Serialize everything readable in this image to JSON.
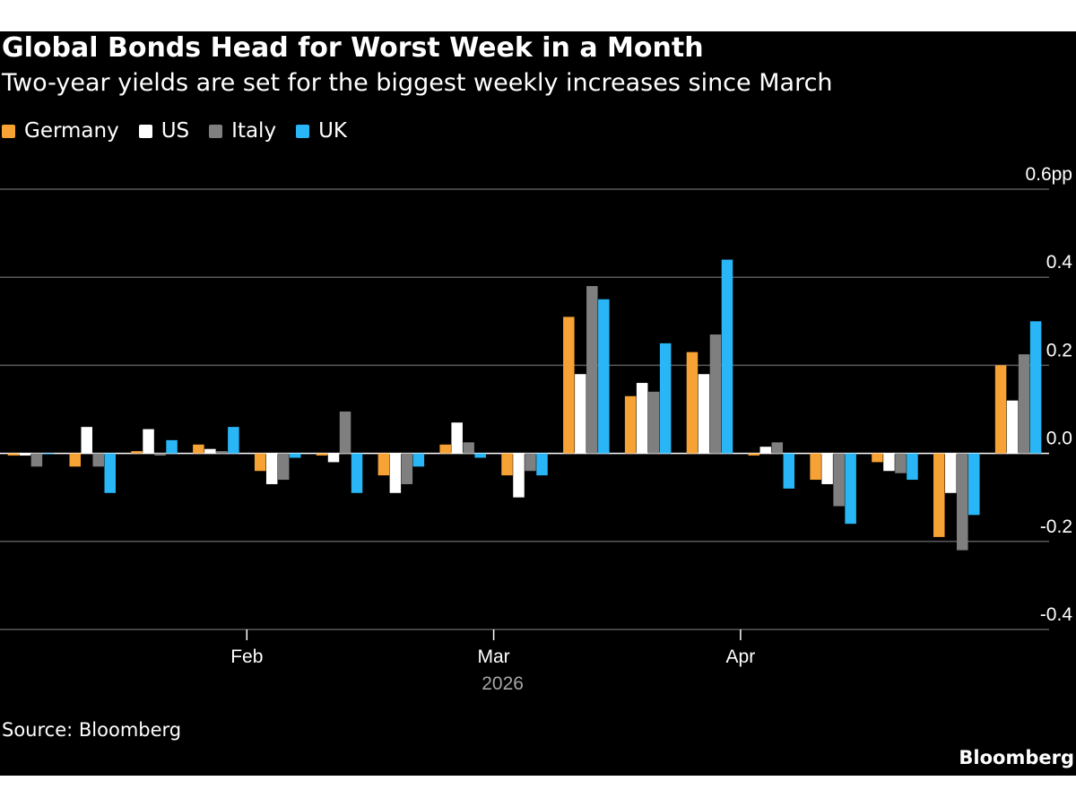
{
  "title": "Global Bonds Head for Worst Week in a Month",
  "subtitle": "Two-year yields are set for the biggest weekly increases since March",
  "source": "Source: Bloomberg",
  "brand": "Bloomberg",
  "colors": {
    "background": "#000000",
    "text": "#ffffff",
    "grid": "#5a5a5a"
  },
  "chart_data": {
    "type": "bar",
    "title": "",
    "xlabel": "2026",
    "ylabel": "",
    "ylim": [
      -0.4,
      0.6
    ],
    "y_ticks": [
      {
        "value": 0.6,
        "label": "0.6pp"
      },
      {
        "value": 0.4,
        "label": "0.4"
      },
      {
        "value": 0.2,
        "label": "0.2"
      },
      {
        "value": 0.0,
        "label": "0.0"
      },
      {
        "value": -0.2,
        "label": "-0.2"
      },
      {
        "value": -0.4,
        "label": "-0.4"
      }
    ],
    "x_ticks": [
      {
        "label": "Feb",
        "after_week": 3.5
      },
      {
        "label": "Mar",
        "after_week": 7.5
      },
      {
        "label": "Apr",
        "after_week": 11.5
      }
    ],
    "year_label": "2026",
    "grid": true,
    "legend_position": "top-left",
    "categories": [
      "Week 1",
      "Week 2",
      "Week 3",
      "Week 4",
      "Week 5",
      "Week 6",
      "Week 7",
      "Week 8",
      "Week 9",
      "Week 10",
      "Week 11",
      "Week 12",
      "Week 13",
      "Week 14",
      "Week 15",
      "Week 16",
      "Week 17"
    ],
    "series": [
      {
        "name": "Germany",
        "color": "#f7a235",
        "values": [
          -0.005,
          -0.03,
          0.005,
          0.02,
          -0.04,
          -0.005,
          -0.05,
          0.02,
          -0.05,
          0.31,
          0.13,
          0.23,
          -0.005,
          -0.06,
          -0.02,
          -0.19,
          0.2
        ]
      },
      {
        "name": "US",
        "color": "#ffffff",
        "values": [
          -0.005,
          0.06,
          0.055,
          0.01,
          -0.07,
          -0.02,
          -0.09,
          0.07,
          -0.1,
          0.18,
          0.16,
          0.18,
          0.015,
          -0.07,
          -0.04,
          -0.09,
          0.12
        ]
      },
      {
        "name": "Italy",
        "color": "#7f7f7f",
        "values": [
          -0.03,
          -0.03,
          -0.005,
          0.005,
          -0.06,
          0.095,
          -0.07,
          0.025,
          -0.04,
          0.38,
          0.14,
          0.27,
          0.025,
          -0.12,
          -0.045,
          -0.22,
          0.225
        ]
      },
      {
        "name": "UK",
        "color": "#29b6f6",
        "values": [
          0.0,
          -0.09,
          0.03,
          0.06,
          -0.01,
          -0.09,
          -0.03,
          -0.01,
          -0.05,
          0.35,
          0.25,
          0.44,
          -0.08,
          -0.16,
          -0.06,
          -0.14,
          0.3
        ]
      }
    ]
  }
}
